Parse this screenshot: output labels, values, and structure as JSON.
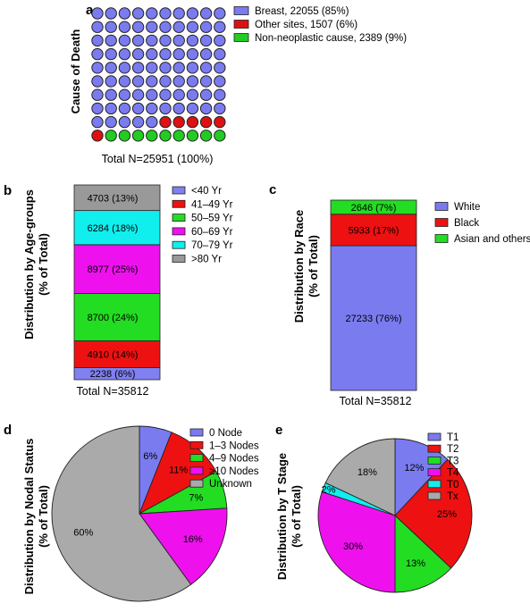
{
  "chart_data": [
    {
      "id": "a",
      "panel_label": "a",
      "type": "waffle",
      "ylabel": "Cause of Death",
      "total_label": "Total N=25951 (100%)",
      "grid": {
        "rows": 10,
        "cols": 10
      },
      "categories": [
        {
          "name": "Breast, 22055 (85%)",
          "value": 22055,
          "percent": 85,
          "cells": 85,
          "color": "#7b7bf0"
        },
        {
          "name": "Other sites, 1507 (6%)",
          "value": 1507,
          "percent": 6,
          "cells": 6,
          "color": "#dd1111"
        },
        {
          "name": "Non-neoplastic cause, 2389 (9%)",
          "value": 2389,
          "percent": 9,
          "cells": 9,
          "color": "#22cc22"
        }
      ]
    },
    {
      "id": "b",
      "panel_label": "b",
      "type": "stacked_bar",
      "ylabel_lines": [
        "Distribution by Age-groups",
        "(% of Total)"
      ],
      "total_label": "Total N=35812",
      "segments": [
        {
          "name": "<40 Yr",
          "value": 2238,
          "percent": 6,
          "label": "2238 (6%)",
          "color": "#8080f0"
        },
        {
          "name": "41–49 Yr",
          "value": 4910,
          "percent": 14,
          "label": "4910 (14%)",
          "color": "#ee1111"
        },
        {
          "name": "50–59 Yr",
          "value": 8700,
          "percent": 24,
          "label": "8700 (24%)",
          "color": "#22dd22"
        },
        {
          "name": "60–69 Yr",
          "value": 8977,
          "percent": 25,
          "label": "8977 (25%)",
          "color": "#ee11ee"
        },
        {
          "name": "70–79 Yr",
          "value": 6284,
          "percent": 18,
          "label": "6284 (18%)",
          "color": "#11eeee"
        },
        {
          "name": ">80 Yr",
          "value": 4703,
          "percent": 13,
          "label": "4703 (13%)",
          "color": "#999999"
        }
      ]
    },
    {
      "id": "c",
      "panel_label": "c",
      "type": "stacked_bar",
      "ylabel_lines": [
        "Distribution by Race",
        "(% of Total)"
      ],
      "total_label": "Total N=35812",
      "segments": [
        {
          "name": "White",
          "value": 27233,
          "percent": 76,
          "label": "27233 (76%)",
          "color": "#7b7bf0"
        },
        {
          "name": "Black",
          "value": 5933,
          "percent": 17,
          "label": "5933 (17%)",
          "color": "#ee1111"
        },
        {
          "name": "Asian and others",
          "value": 2646,
          "percent": 7,
          "label": "2646 (7%)",
          "color": "#22dd22"
        }
      ]
    },
    {
      "id": "d",
      "panel_label": "d",
      "type": "pie",
      "ylabel_lines": [
        "Distribution by Nodal Status",
        "(% of Total)"
      ],
      "slices": [
        {
          "name": "0 Node",
          "percent": 6,
          "label": "6%",
          "color": "#7b7bf0"
        },
        {
          "name": "1–3 Nodes",
          "percent": 11,
          "label": "11%",
          "color": "#ee1111"
        },
        {
          "name": "4–9 Nodes",
          "percent": 7,
          "label": "7%",
          "color": "#22dd22"
        },
        {
          "name": "≥10 Nodes",
          "percent": 16,
          "label": "16%",
          "color": "#ee11ee"
        },
        {
          "name": "Unknown",
          "percent": 60,
          "label": "60%",
          "color": "#aaaaaa"
        }
      ]
    },
    {
      "id": "e",
      "panel_label": "e",
      "type": "pie",
      "ylabel_lines": [
        "Distribution by T Stage",
        "(% of Total)"
      ],
      "slices": [
        {
          "name": "T1",
          "percent": 12,
          "label": "12%",
          "color": "#7b7bf0"
        },
        {
          "name": "T2",
          "percent": 25,
          "label": "25%",
          "color": "#ee1111"
        },
        {
          "name": "T3",
          "percent": 13,
          "label": "13%",
          "color": "#22dd22"
        },
        {
          "name": "T4",
          "percent": 30,
          "label": "30%",
          "color": "#ee11ee"
        },
        {
          "name": "T0",
          "percent": 2,
          "label": "2%",
          "color": "#11eeee"
        },
        {
          "name": "Tx",
          "percent": 18,
          "label": "18%",
          "color": "#aaaaaa"
        }
      ]
    }
  ]
}
